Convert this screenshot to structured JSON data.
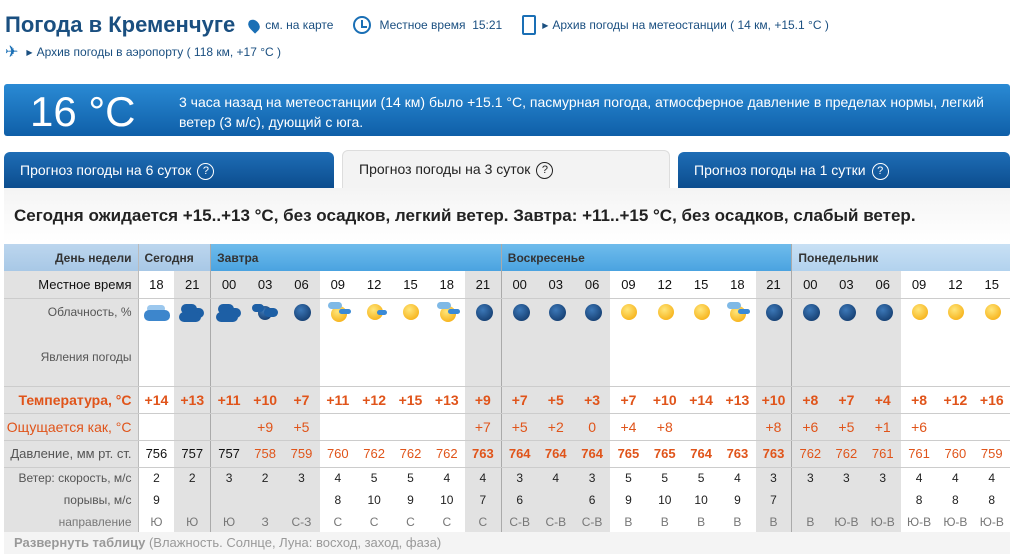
{
  "header": {
    "title": "Погода в Кременчуге",
    "map_link": "см. на карте",
    "local_time_label": "Местное время",
    "local_time": "15:21",
    "station_archive": "Архив погоды на метеостанции ( 14 км, +15.1 °C )",
    "airport_archive": "Архив погоды в аэропорту ( 118 км, +17 °C )"
  },
  "current": {
    "temp": "16 °C",
    "description": "3 часа назад на метеостанции (14 км) было +15.1 °C, пасмурная погода, атмосферное давление в пределах нормы, легкий ветер (3 м/с), дующий с юга."
  },
  "tabs": [
    {
      "label": "Прогноз погоды на 6 суток",
      "active": false
    },
    {
      "label": "Прогноз погоды на 3 суток",
      "active": true
    },
    {
      "label": "Прогноз погоды на 1 сутки",
      "active": false
    }
  ],
  "help_mark": "?",
  "summary": "Сегодня ожидается +15..+13 °C, без осадков, легкий ветер. Завтра: +11..+15 °C, без осадков, слабый ветер.",
  "table": {
    "labels": {
      "day": "День недели",
      "time": "Местное время",
      "clouds": "Облачность, %",
      "phenomena": "Явления погоды",
      "temp": "Температура, °C",
      "feels": "Ощущается как, °C",
      "pressure": "Давление, мм рт. ст.",
      "wind_speed": "Ветер: скорость, м/с",
      "gusts": "порывы, м/с",
      "direction": "направление"
    },
    "days": [
      {
        "name": "Сегодня",
        "cols": 2
      },
      {
        "name": "Завтра",
        "cols": 8
      },
      {
        "name": "Воскресенье",
        "cols": 8
      },
      {
        "name": "Понедельник",
        "cols": 6
      }
    ],
    "times": [
      "18",
      "21",
      "00",
      "03",
      "06",
      "09",
      "12",
      "15",
      "18",
      "21",
      "00",
      "03",
      "06",
      "09",
      "12",
      "15",
      "18",
      "21",
      "00",
      "03",
      "06",
      "09",
      "12",
      "15"
    ],
    "clouds": [
      "overcast",
      "cloudy-night",
      "cloudy-night",
      "partly-cloudy-night",
      "clear-night",
      "partly-cloudy-day",
      "sun-small-cloud",
      "clear-day",
      "partly-cloudy-day",
      "clear-night",
      "clear-night",
      "clear-night",
      "clear-night",
      "clear-day",
      "clear-day",
      "clear-day",
      "partly-cloudy-day",
      "clear-night",
      "clear-night",
      "clear-night",
      "clear-night",
      "clear-day",
      "clear-day",
      "clear-day"
    ],
    "temp": [
      "+14",
      "+13",
      "+11",
      "+10",
      "+7",
      "+11",
      "+12",
      "+15",
      "+13",
      "+9",
      "+7",
      "+5",
      "+3",
      "+7",
      "+10",
      "+14",
      "+13",
      "+10",
      "+8",
      "+7",
      "+4",
      "+8",
      "+12",
      "+16"
    ],
    "feels": [
      "",
      "",
      "",
      "+9",
      "+5",
      "",
      "",
      "",
      "",
      "+7",
      "+5",
      "+2",
      "0",
      "+4",
      "+8",
      "",
      "",
      "+8",
      "+6",
      "+5",
      "+1",
      "+6",
      "",
      ""
    ],
    "pressure": [
      "756",
      "757",
      "757",
      "758",
      "759",
      "760",
      "762",
      "762",
      "762",
      "763",
      "764",
      "764",
      "764",
      "765",
      "765",
      "764",
      "763",
      "763",
      "762",
      "762",
      "761",
      "761",
      "760",
      "759"
    ],
    "wind_speed": [
      "2",
      "2",
      "3",
      "2",
      "3",
      "4",
      "5",
      "5",
      "4",
      "4",
      "3",
      "4",
      "3",
      "5",
      "5",
      "5",
      "4",
      "3",
      "3",
      "3",
      "3",
      "4",
      "4",
      "4"
    ],
    "gusts": [
      "9",
      "",
      "",
      "",
      "",
      "8",
      "10",
      "9",
      "10",
      "7",
      "6",
      "",
      "6",
      "9",
      "10",
      "10",
      "9",
      "7",
      "",
      "",
      "",
      "8",
      "8",
      "8"
    ],
    "direction": [
      "Ю",
      "Ю",
      "Ю",
      "З",
      "С-З",
      "С",
      "С",
      "С",
      "С",
      "С",
      "С-В",
      "С-В",
      "С-В",
      "В",
      "В",
      "В",
      "В",
      "В",
      "В",
      "Ю-В",
      "Ю-В",
      "Ю-В",
      "Ю-В",
      "Ю-В"
    ]
  },
  "footer": {
    "expand": "Развернуть таблицу",
    "details": "(Влажность. Солнце, Луна: восход, заход, фаза)"
  },
  "colors": {
    "accent": "#1a6fb5",
    "temp": "#e0541a"
  }
}
